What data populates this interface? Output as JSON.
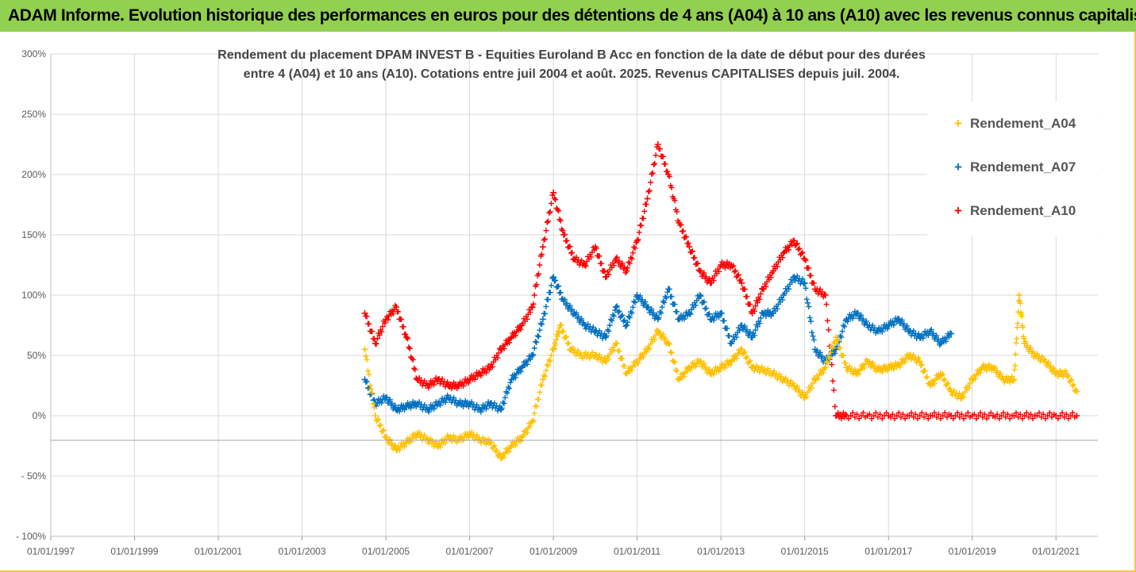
{
  "banner": {
    "text": "ADAM Informe. Evolution historique des performances en euros pour des détentions de 4 ans (A04) à 10 ans (A10) avec les revenus connus capitalisés"
  },
  "chart_data": {
    "type": "scatter",
    "title_line1": "Rendement du placement DPAM INVEST B - Equities Euroland B Acc en fonction de la date de début pour des durées",
    "title_line2": "entre 4 (A04) et 10 ans (A10).  Cotations entre juil 2004 et août. 2025. Revenus CAPITALISES depuis juil. 2004.",
    "xlim": [
      "1997-01-01",
      "2022-01-01"
    ],
    "ylim": [
      -100,
      300
    ],
    "y_ticks": [
      300,
      250,
      200,
      150,
      100,
      50,
      0,
      -50,
      -100
    ],
    "y_tick_labels": [
      "300%",
      "250%",
      "200%",
      "150%",
      "100%",
      "50%",
      "0%",
      "- 50%",
      "- 100%"
    ],
    "x_ticks": [
      "1997-01-01",
      "1999-01-01",
      "2001-01-01",
      "2003-01-01",
      "2005-01-01",
      "2007-01-01",
      "2009-01-01",
      "2011-01-01",
      "2013-01-01",
      "2015-01-01",
      "2017-01-01",
      "2019-01-01",
      "2021-01-01"
    ],
    "x_tick_labels": [
      "01/01/1997",
      "01/01/1999",
      "01/01/2001",
      "01/01/2003",
      "01/01/2005",
      "01/01/2007",
      "01/01/2009",
      "01/01/2011",
      "01/01/2013",
      "01/01/2015",
      "01/01/2017",
      "01/01/2019",
      "01/01/2021"
    ],
    "grid": true,
    "legend_position": "top-right",
    "series": [
      {
        "name": "Rendement_A04",
        "color": "#ffc000",
        "x": [
          "2004-07-01",
          "2004-10-01",
          "2005-01-01",
          "2005-04-01",
          "2005-07-01",
          "2005-10-01",
          "2006-01-01",
          "2006-04-01",
          "2006-07-01",
          "2006-10-01",
          "2007-01-01",
          "2007-04-01",
          "2007-07-01",
          "2007-10-01",
          "2008-01-01",
          "2008-04-01",
          "2008-07-01",
          "2008-10-01",
          "2009-01-01",
          "2009-03-01",
          "2009-06-01",
          "2009-09-01",
          "2010-01-01",
          "2010-04-01",
          "2010-07-01",
          "2010-10-01",
          "2011-01-01",
          "2011-04-01",
          "2011-07-01",
          "2011-10-01",
          "2012-01-01",
          "2012-04-01",
          "2012-07-01",
          "2012-10-01",
          "2013-01-01",
          "2013-04-01",
          "2013-07-01",
          "2013-10-01",
          "2014-01-01",
          "2014-04-01",
          "2014-07-01",
          "2014-10-01",
          "2015-01-01",
          "2015-04-01",
          "2015-07-01",
          "2015-10-01",
          "2016-01-01",
          "2016-04-01",
          "2016-07-01",
          "2016-10-01",
          "2017-01-01",
          "2017-04-01",
          "2017-07-01",
          "2017-10-01",
          "2018-01-01",
          "2018-04-01",
          "2018-07-01",
          "2018-10-01",
          "2019-01-01",
          "2019-04-01",
          "2019-07-01",
          "2019-10-01",
          "2020-01-01",
          "2020-02-15",
          "2020-04-01",
          "2020-07-01",
          "2020-10-01",
          "2021-01-01",
          "2021-04-01",
          "2021-07-01"
        ],
        "y": [
          55,
          0,
          -18,
          -28,
          -22,
          -15,
          -20,
          -25,
          -18,
          -20,
          -15,
          -20,
          -22,
          -35,
          -25,
          -18,
          -5,
          30,
          55,
          75,
          55,
          50,
          50,
          45,
          60,
          35,
          45,
          55,
          70,
          60,
          30,
          40,
          45,
          35,
          40,
          45,
          55,
          40,
          38,
          35,
          30,
          25,
          15,
          30,
          40,
          65,
          40,
          35,
          45,
          38,
          40,
          42,
          50,
          45,
          25,
          35,
          20,
          15,
          30,
          40,
          40,
          30,
          30,
          100,
          60,
          50,
          45,
          35,
          35,
          20
        ]
      },
      {
        "name": "Rendement_A07",
        "color": "#0070c0",
        "x": [
          "2004-07-01",
          "2004-10-01",
          "2005-01-01",
          "2005-04-01",
          "2005-07-01",
          "2005-10-01",
          "2006-01-01",
          "2006-04-01",
          "2006-07-01",
          "2006-10-01",
          "2007-01-01",
          "2007-04-01",
          "2007-07-01",
          "2007-10-01",
          "2008-01-01",
          "2008-04-01",
          "2008-07-01",
          "2008-10-01",
          "2009-01-01",
          "2009-04-01",
          "2009-07-01",
          "2009-10-01",
          "2010-01-01",
          "2010-04-01",
          "2010-07-01",
          "2010-10-01",
          "2011-01-01",
          "2011-04-01",
          "2011-07-01",
          "2011-10-01",
          "2012-01-01",
          "2012-04-01",
          "2012-07-01",
          "2012-10-01",
          "2013-01-01",
          "2013-04-01",
          "2013-07-01",
          "2013-10-01",
          "2014-01-01",
          "2014-04-01",
          "2014-07-01",
          "2014-10-01",
          "2015-01-01",
          "2015-04-01",
          "2015-07-01",
          "2015-10-01",
          "2016-01-01",
          "2016-04-01",
          "2016-07-01",
          "2016-10-01",
          "2017-01-01",
          "2017-04-01",
          "2017-07-01",
          "2017-10-01",
          "2018-01-01",
          "2018-04-01",
          "2018-07-01"
        ],
        "y": [
          30,
          10,
          15,
          5,
          8,
          10,
          5,
          10,
          15,
          10,
          10,
          5,
          10,
          5,
          30,
          40,
          50,
          80,
          115,
          95,
          85,
          75,
          70,
          65,
          90,
          75,
          100,
          90,
          80,
          105,
          80,
          85,
          100,
          80,
          85,
          60,
          75,
          65,
          85,
          85,
          100,
          115,
          110,
          55,
          45,
          55,
          80,
          85,
          75,
          70,
          75,
          80,
          70,
          65,
          70,
          60,
          68
        ]
      },
      {
        "name": "Rendement_A10",
        "color": "#ff0000",
        "x": [
          "2004-07-01",
          "2004-10-01",
          "2005-01-01",
          "2005-04-01",
          "2005-07-01",
          "2005-10-01",
          "2006-01-01",
          "2006-04-01",
          "2006-07-01",
          "2006-10-01",
          "2007-01-01",
          "2007-04-01",
          "2007-07-01",
          "2007-10-01",
          "2008-01-01",
          "2008-04-01",
          "2008-07-01",
          "2008-10-01",
          "2009-01-01",
          "2009-04-01",
          "2009-07-01",
          "2009-10-01",
          "2010-01-01",
          "2010-04-01",
          "2010-07-01",
          "2010-10-01",
          "2011-01-01",
          "2011-04-01",
          "2011-07-01",
          "2011-10-01",
          "2012-01-01",
          "2012-04-01",
          "2012-07-01",
          "2012-10-01",
          "2013-01-01",
          "2013-04-01",
          "2013-07-01",
          "2013-10-01",
          "2014-01-01",
          "2014-04-01",
          "2014-07-01",
          "2014-10-01",
          "2015-01-01",
          "2015-04-01",
          "2015-07-01",
          "2015-10-01",
          "2016-01-01",
          "2016-07-01",
          "2017-01-01",
          "2017-07-01",
          "2018-01-01",
          "2018-07-01",
          "2019-01-01",
          "2019-07-01",
          "2020-01-01",
          "2020-07-01",
          "2021-01-01",
          "2021-07-01"
        ],
        "y": [
          85,
          60,
          80,
          90,
          65,
          30,
          25,
          30,
          25,
          25,
          30,
          35,
          40,
          55,
          65,
          75,
          90,
          140,
          185,
          150,
          130,
          125,
          140,
          115,
          130,
          120,
          145,
          180,
          225,
          200,
          160,
          140,
          120,
          110,
          125,
          125,
          110,
          85,
          105,
          120,
          135,
          145,
          130,
          105,
          100,
          0,
          0,
          0,
          0,
          0,
          0,
          0,
          0,
          0,
          0,
          0,
          0,
          0
        ]
      }
    ]
  }
}
